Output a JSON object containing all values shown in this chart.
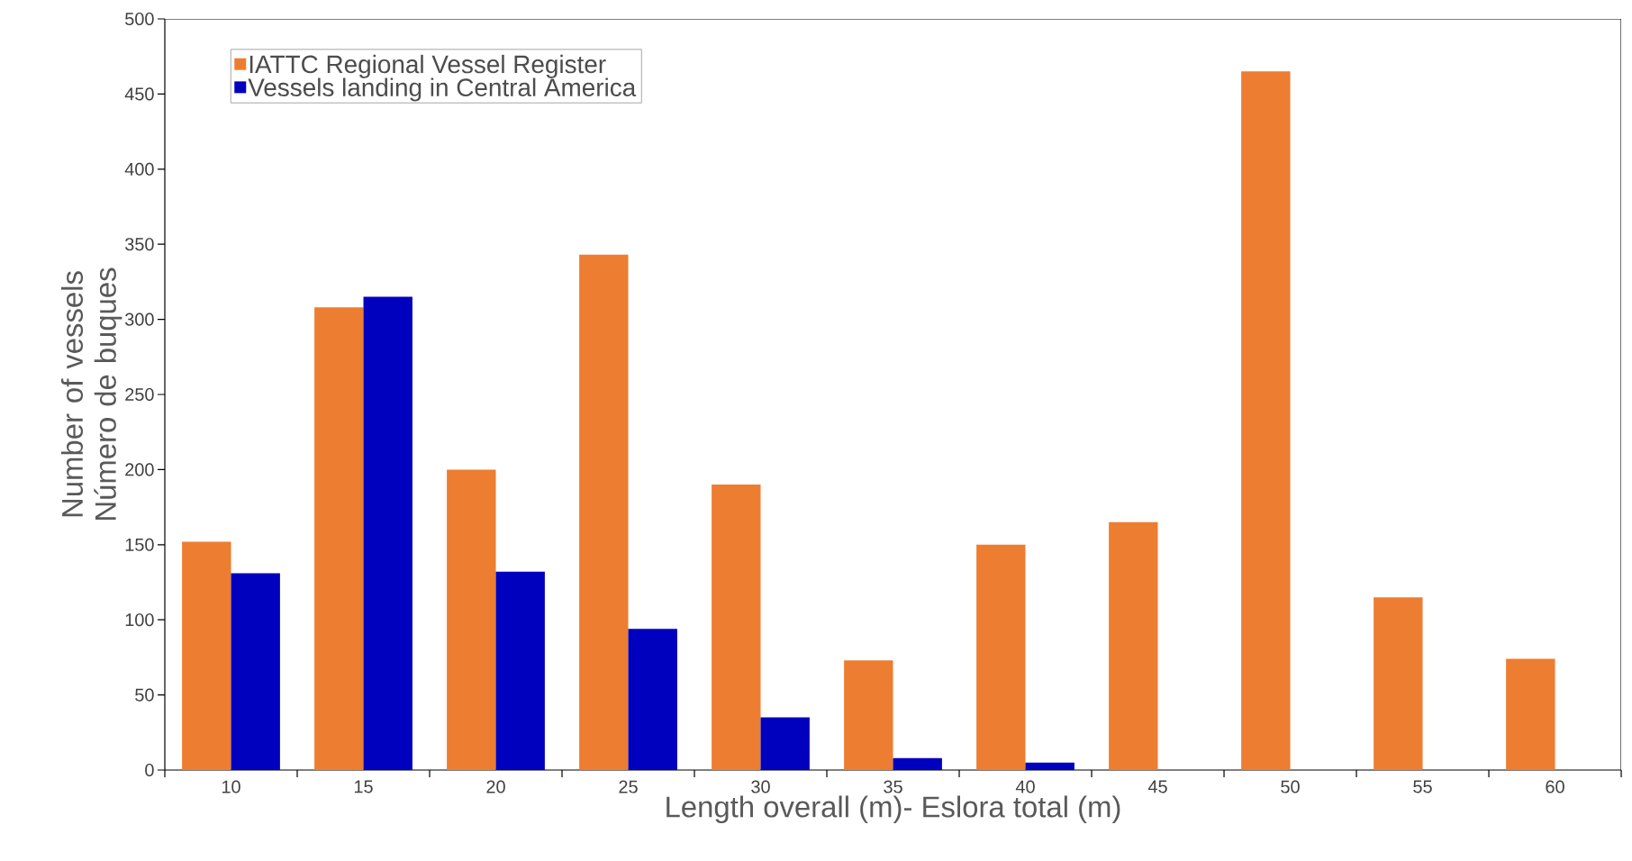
{
  "chart_data": {
    "type": "bar",
    "xlabel": "Length overall (m)- Eslora total (m)",
    "ylabel": "Number of vessels Número de buques",
    "categories": [
      "10",
      "15",
      "20",
      "25",
      "30",
      "35",
      "40",
      "45",
      "50",
      "55",
      "60"
    ],
    "series": [
      {
        "name": "IATTC Regional Vessel Register",
        "color": "#ed7d31",
        "values": [
          152,
          308,
          200,
          343,
          190,
          73,
          150,
          165,
          465,
          115,
          74
        ]
      },
      {
        "name": "Vessels landing in Central America",
        "color": "#0000bf",
        "values": [
          131,
          315,
          132,
          94,
          35,
          8,
          5,
          0,
          0,
          0,
          0
        ]
      }
    ],
    "ylim": [
      0,
      500
    ],
    "yticks": [
      0,
      50,
      100,
      150,
      200,
      250,
      300,
      350,
      400,
      450,
      500
    ],
    "legend": "top left",
    "grid": false
  }
}
